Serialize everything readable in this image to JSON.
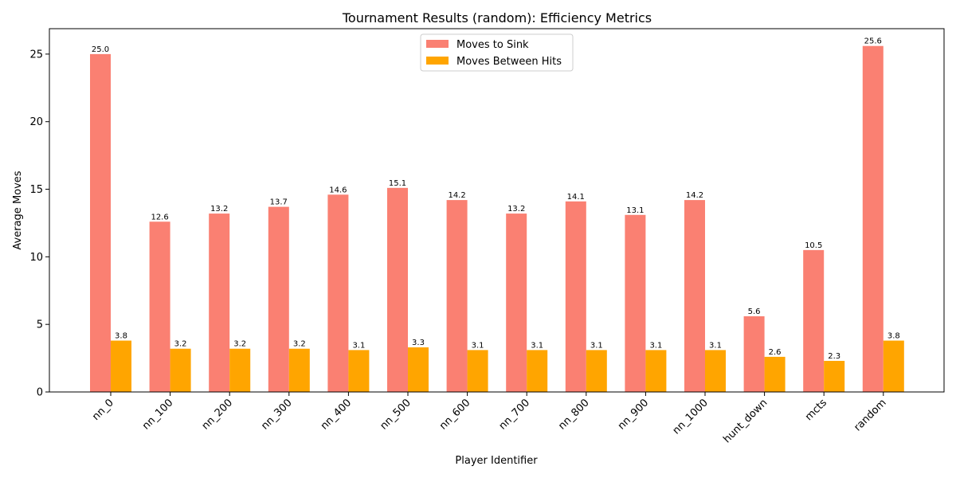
{
  "chart_data": {
    "type": "bar",
    "title": "Tournament Results (random): Efficiency Metrics",
    "xlabel": "Player Identifier",
    "ylabel": "Average Moves",
    "categories": [
      "nn_0",
      "nn_100",
      "nn_200",
      "nn_300",
      "nn_400",
      "nn_500",
      "nn_600",
      "nn_700",
      "nn_800",
      "nn_900",
      "nn_1000",
      "hunt_down",
      "mcts",
      "random"
    ],
    "series": [
      {
        "name": "Moves to Sink",
        "color": "#fa8072",
        "values": [
          25.0,
          12.6,
          13.2,
          13.7,
          14.6,
          15.1,
          14.2,
          13.2,
          14.1,
          13.1,
          14.2,
          5.6,
          10.5,
          25.6
        ]
      },
      {
        "name": "Moves Between Hits",
        "color": "#ffa500",
        "values": [
          3.8,
          3.2,
          3.2,
          3.2,
          3.1,
          3.3,
          3.1,
          3.1,
          3.1,
          3.1,
          3.1,
          2.6,
          2.3,
          3.8
        ]
      }
    ],
    "ylim": [
      0,
      26.88
    ],
    "yticks": [
      0,
      5,
      10,
      15,
      20,
      25
    ],
    "legend_position": "top-center",
    "grid": false
  }
}
